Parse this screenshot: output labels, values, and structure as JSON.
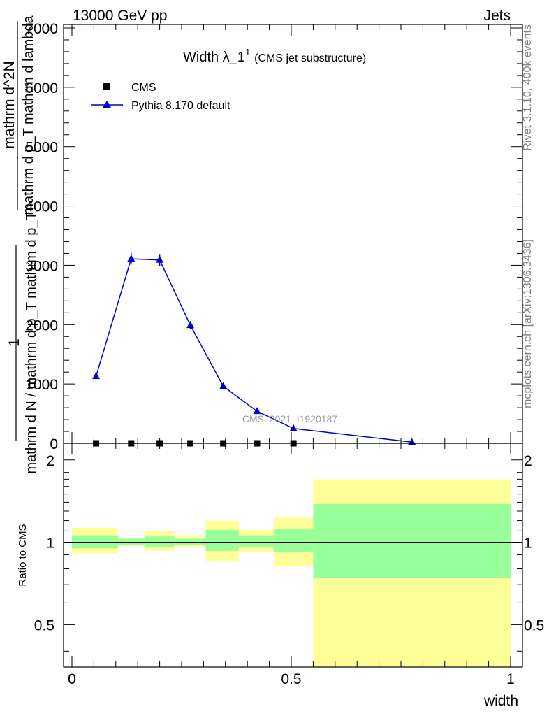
{
  "header": {
    "left": "13000 GeV pp",
    "right": "Jets"
  },
  "title": {
    "main": "Width λ_1",
    "sup": "1",
    "sub": "(CMS jet substructure)"
  },
  "watermark": "CMS_2021_I1920187",
  "side_labels": {
    "rivet": "Rivet 3.1.10,  400k events",
    "mcplots": "mcplots.cern.ch [arXiv:1306.3436]"
  },
  "legend": {
    "placement": "top-left",
    "data_label": "CMS",
    "mc_label": "Pythia 8.170 default"
  },
  "colors": {
    "mc_line": "#0000cc",
    "band_inner": "#99ff99",
    "band_outer": "#ffff99",
    "data_marker": "#000000"
  },
  "chart_data": [
    {
      "type": "line",
      "ylabel_parts": [
        "1",
        "mathrm d N / mathrm d p_T mathrm d p_T",
        "mathrm d^2N",
        "mathrm d p_T mathrm d lambda"
      ],
      "xlabel": "",
      "xlim": [
        0,
        1
      ],
      "ylim": [
        0,
        7000
      ],
      "yticks": [
        0,
        1000,
        2000,
        3000,
        4000,
        5000,
        6000,
        7000
      ],
      "ytick_labels": [
        "0",
        "1000",
        "2000",
        "3000",
        "4000",
        "5000",
        "6000",
        "7000"
      ],
      "series": [
        {
          "name": "CMS",
          "x": [
            0.055,
            0.135,
            0.2,
            0.27,
            0.345,
            0.422,
            0.505
          ],
          "y": [
            0,
            0,
            0,
            0,
            0,
            0,
            0
          ]
        },
        {
          "name": "Pythia 8.170 default",
          "x": [
            0.055,
            0.135,
            0.2,
            0.27,
            0.345,
            0.422,
            0.505,
            0.775
          ],
          "y": [
            1130,
            3110,
            3090,
            1990,
            960,
            540,
            250,
            20
          ],
          "yerr": [
            30,
            100,
            100,
            70,
            35,
            25,
            15,
            5
          ]
        }
      ]
    },
    {
      "type": "area",
      "ylabel": "Ratio to CMS",
      "xlabel": "width",
      "xlim": [
        0,
        1
      ],
      "ylim": [
        0.35,
        2.3
      ],
      "yscale": "log",
      "yticks": [
        0.5,
        1,
        2
      ],
      "ytick_labels": [
        "0.5",
        "1",
        "2"
      ],
      "xticks": [
        0,
        0.5,
        1
      ],
      "xtick_labels": [
        "0",
        "0.5",
        "1"
      ],
      "reference_line": 1,
      "bins": [
        {
          "lo": 0.0,
          "hi": 0.105,
          "inner": [
            0.95,
            1.06
          ],
          "outer": [
            0.91,
            1.13
          ]
        },
        {
          "lo": 0.105,
          "hi": 0.165,
          "inner": [
            0.98,
            1.03
          ],
          "outer": [
            0.97,
            1.04
          ]
        },
        {
          "lo": 0.165,
          "hi": 0.233,
          "inner": [
            0.96,
            1.05
          ],
          "outer": [
            0.93,
            1.1
          ]
        },
        {
          "lo": 0.233,
          "hi": 0.305,
          "inner": [
            0.98,
            1.03
          ],
          "outer": [
            0.96,
            1.06
          ]
        },
        {
          "lo": 0.305,
          "hi": 0.38,
          "inner": [
            0.93,
            1.11
          ],
          "outer": [
            0.85,
            1.2
          ]
        },
        {
          "lo": 0.38,
          "hi": 0.46,
          "inner": [
            0.96,
            1.06
          ],
          "outer": [
            0.92,
            1.11
          ]
        },
        {
          "lo": 0.46,
          "hi": 0.55,
          "inner": [
            0.92,
            1.12
          ],
          "outer": [
            0.82,
            1.23
          ]
        },
        {
          "lo": 0.55,
          "hi": 1.0,
          "inner": [
            0.74,
            1.38
          ],
          "outer": [
            0.35,
            1.7
          ]
        }
      ]
    }
  ]
}
